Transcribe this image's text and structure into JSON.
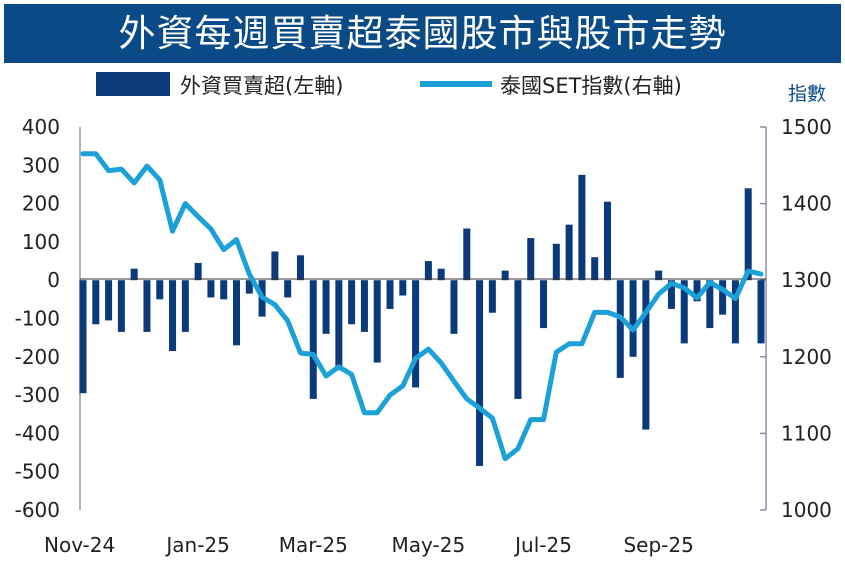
{
  "chart_data": {
    "type": "bar+line",
    "title": "外資每週買賣超泰國股市與股市走勢",
    "left_axis": {
      "ylim": [
        -600,
        400
      ],
      "ticks": [
        400,
        300,
        200,
        100,
        0,
        -100,
        -200,
        -300,
        -400,
        -500,
        -600
      ]
    },
    "right_axis": {
      "label": "指數",
      "ylim": [
        1000,
        1500
      ],
      "ticks": [
        1500,
        1400,
        1300,
        1200,
        1100,
        1000
      ]
    },
    "x_tick_labels": [
      "Nov-24",
      "Jan-25",
      "Mar-25",
      "May-25",
      "Jul-25",
      "Sep-25"
    ],
    "x_tick_week_index": [
      0,
      9,
      18,
      27,
      36,
      45
    ],
    "series": [
      {
        "name": "外資買賣超(左軸)",
        "type": "bar",
        "axis": "left",
        "color": "#0a3a7a",
        "values": [
          -295,
          -115,
          -105,
          -135,
          30,
          -135,
          -50,
          -185,
          -135,
          45,
          -45,
          -50,
          -170,
          -35,
          -95,
          75,
          -45,
          65,
          -310,
          -140,
          -235,
          -115,
          -135,
          -215,
          -75,
          -40,
          -280,
          50,
          30,
          -140,
          135,
          -485,
          -85,
          25,
          -310,
          110,
          -125,
          95,
          145,
          275,
          60,
          205,
          -255,
          -200,
          -390,
          25,
          -75,
          -165,
          -55,
          -125,
          -90,
          -165,
          240,
          -165
        ]
      },
      {
        "name": "泰國SET指數(右軸)",
        "type": "line",
        "axis": "right",
        "color": "#1ba1d8",
        "values": [
          1465,
          1465,
          1443,
          1445,
          1427,
          1449,
          1431,
          1364,
          1400,
          1383,
          1367,
          1340,
          1353,
          1308,
          1278,
          1268,
          1247,
          1205,
          1203,
          1175,
          1187,
          1177,
          1127,
          1127,
          1150,
          1162,
          1198,
          1210,
          1192,
          1168,
          1145,
          1133,
          1120,
          1067,
          1080,
          1118,
          1118,
          1206,
          1217,
          1217,
          1258,
          1258,
          1252,
          1235,
          1258,
          1282,
          1296,
          1290,
          1277,
          1297,
          1288,
          1276,
          1312,
          1308
        ]
      }
    ]
  }
}
